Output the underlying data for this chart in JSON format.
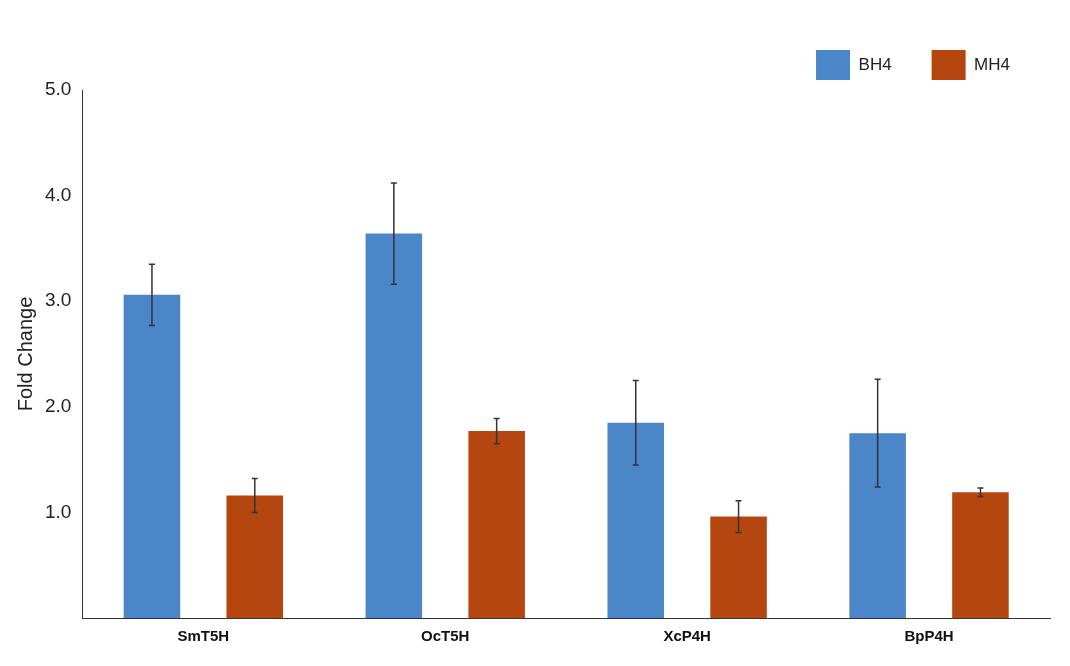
{
  "chart_data": {
    "type": "bar",
    "ylabel": "Fold Change",
    "categories": [
      "SmT5H",
      "OcT5H",
      "XcP4H",
      "BpP4H"
    ],
    "series": [
      {
        "name": "BH4",
        "color": "#4a86c8",
        "values": [
          3.06,
          3.64,
          1.85,
          1.75
        ],
        "errors": [
          0.29,
          0.48,
          0.4,
          0.51
        ]
      },
      {
        "name": "MH4",
        "color": "#b5460f",
        "values": [
          1.16,
          1.77,
          0.96,
          1.19
        ],
        "errors": [
          0.16,
          0.12,
          0.15,
          0.04
        ]
      }
    ],
    "ylim": [
      0,
      5
    ],
    "yticks": [
      {
        "value": 0,
        "label": null
      },
      {
        "value": 1,
        "label": "1.0"
      },
      {
        "value": 2,
        "label": "2.0"
      },
      {
        "value": 3,
        "label": "3.0"
      },
      {
        "value": 4,
        "label": "4.0"
      },
      {
        "value": 5,
        "label": "5.0"
      }
    ],
    "grid": false,
    "legend": "top right"
  }
}
